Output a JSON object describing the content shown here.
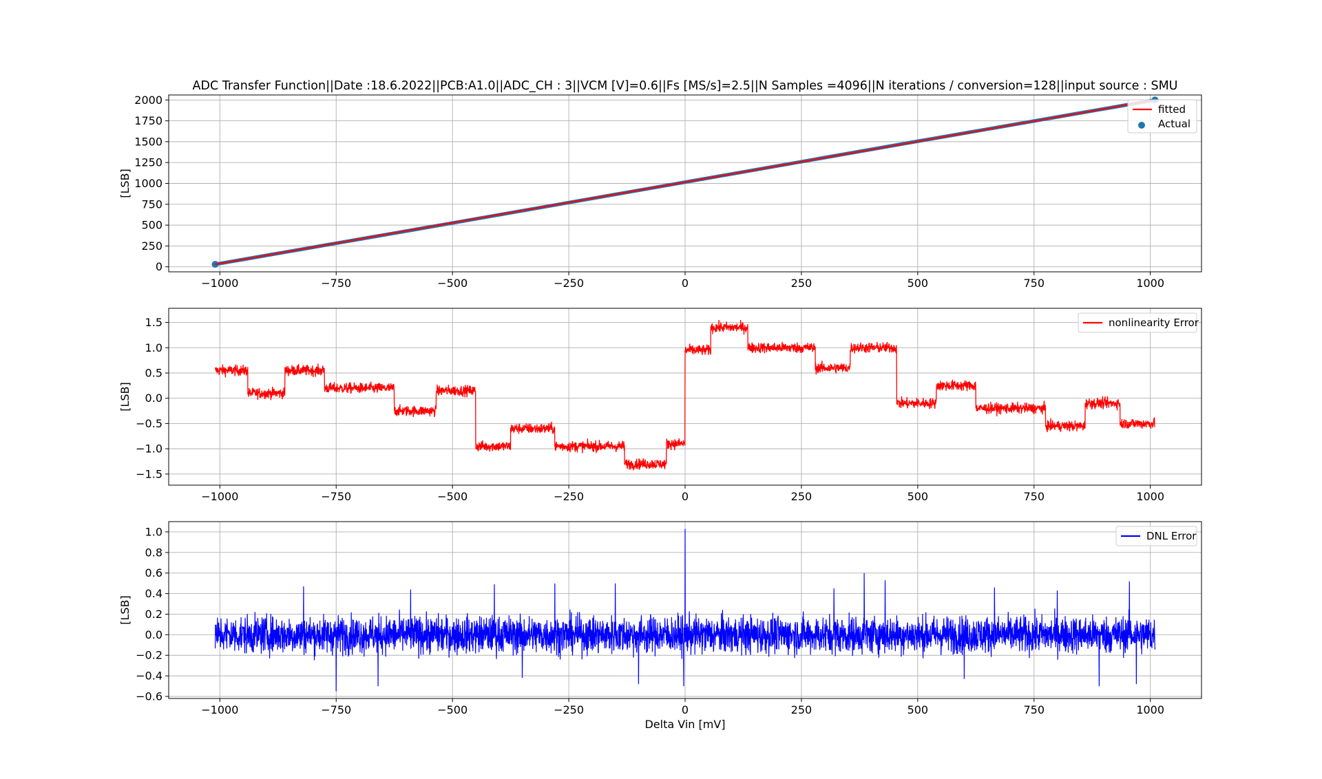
{
  "figure": {
    "title": "ADC Transfer Function||Date :18.6.2022||PCB:A1.0||ADC_CH : 3||VCM [V]=0.6||Fs [MS/s]=2.5||N Samples =4096||N iterations / conversion=128||input source : SMU",
    "xlabel": "Delta Vin [mV]"
  },
  "chart_data": [
    {
      "type": "line",
      "panel": "transfer-function",
      "ylabel": "[LSB]",
      "xlim": [
        -1110,
        1110
      ],
      "ylim": [
        -60,
        2060
      ],
      "x_ticks": [
        -1000,
        -750,
        -500,
        -250,
        0,
        250,
        500,
        750,
        1000
      ],
      "x_tick_labels": [
        "−1000",
        "−750",
        "−500",
        "−250",
        "0",
        "250",
        "500",
        "750",
        "1000"
      ],
      "y_ticks": [
        0,
        250,
        500,
        750,
        1000,
        1250,
        1500,
        1750,
        2000
      ],
      "y_tick_labels": [
        "0",
        "250",
        "500",
        "750",
        "1000",
        "1250",
        "1500",
        "1750",
        "2000"
      ],
      "grid": true,
      "legend": "top-right",
      "series": [
        {
          "name": "fitted",
          "style": "line",
          "color": "#ff0000",
          "x": [
            -1010,
            1010
          ],
          "y": [
            30,
            2000
          ]
        },
        {
          "name": "Actual",
          "style": "scatter",
          "color": "#1f77b4",
          "x": [
            -1010,
            -500,
            0,
            500,
            1010
          ],
          "y": [
            30,
            525,
            1015,
            1505,
            2000
          ]
        }
      ]
    },
    {
      "type": "line",
      "panel": "nonlinearity",
      "ylabel": "[LSB]",
      "xlim": [
        -1110,
        1110
      ],
      "ylim": [
        -1.72,
        1.78
      ],
      "x_ticks": [
        -1000,
        -750,
        -500,
        -250,
        0,
        250,
        500,
        750,
        1000
      ],
      "x_tick_labels": [
        "−1000",
        "−750",
        "−500",
        "−250",
        "0",
        "250",
        "500",
        "750",
        "1000"
      ],
      "y_ticks": [
        -1.5,
        -1.0,
        -0.5,
        0.0,
        0.5,
        1.0,
        1.5
      ],
      "y_tick_labels": [
        "−1.5",
        "−1.0",
        "−0.5",
        "0.0",
        "0.5",
        "1.0",
        "1.5"
      ],
      "grid": true,
      "legend": "top-right",
      "series": [
        {
          "name": "nonlinearity Error",
          "color": "#ff0000",
          "noise_amplitude": 0.07,
          "segments": [
            [
              -1010,
              -940,
              0.55
            ],
            [
              -940,
              -860,
              0.1
            ],
            [
              -860,
              -775,
              0.55
            ],
            [
              -775,
              -625,
              0.2
            ],
            [
              -625,
              -535,
              -0.25
            ],
            [
              -535,
              -450,
              0.15
            ],
            [
              -450,
              -375,
              -0.95
            ],
            [
              -375,
              -280,
              -0.6
            ],
            [
              -280,
              -130,
              -0.95
            ],
            [
              -130,
              -40,
              -1.3
            ],
            [
              -40,
              0,
              -0.9
            ],
            [
              0,
              55,
              0.95
            ],
            [
              55,
              135,
              1.4
            ],
            [
              135,
              280,
              1.0
            ],
            [
              280,
              355,
              0.6
            ],
            [
              355,
              455,
              1.0
            ],
            [
              455,
              540,
              -0.1
            ],
            [
              540,
              625,
              0.25
            ],
            [
              625,
              775,
              -0.2
            ],
            [
              775,
              860,
              -0.55
            ],
            [
              860,
              935,
              -0.1
            ],
            [
              935,
              1010,
              -0.5
            ]
          ]
        }
      ]
    },
    {
      "type": "line",
      "panel": "dnl",
      "ylabel": "[LSB]",
      "xlim": [
        -1110,
        1110
      ],
      "ylim": [
        -0.62,
        1.1
      ],
      "x_ticks": [
        -1000,
        -750,
        -500,
        -250,
        0,
        250,
        500,
        750,
        1000
      ],
      "x_tick_labels": [
        "−1000",
        "−750",
        "−500",
        "−250",
        "0",
        "250",
        "500",
        "750",
        "1000"
      ],
      "y_ticks": [
        -0.6,
        -0.4,
        -0.2,
        0.0,
        0.2,
        0.4,
        0.6,
        0.8,
        1.0
      ],
      "y_tick_labels": [
        "−0.6",
        "−0.4",
        "−0.2",
        "0.0",
        "0.2",
        "0.4",
        "0.6",
        "0.8",
        "1.0"
      ],
      "grid": true,
      "legend": "top-right",
      "series": [
        {
          "name": "DNL Error",
          "color": "#0000ff",
          "noise_amplitude": 0.09,
          "spikes": [
            [
              0,
              1.03
            ],
            [
              -3,
              -0.5
            ],
            [
              -750,
              -0.55
            ],
            [
              -660,
              -0.5
            ],
            [
              -100,
              -0.48
            ],
            [
              385,
              0.6
            ],
            [
              430,
              0.53
            ],
            [
              -820,
              0.47
            ],
            [
              -410,
              0.49
            ],
            [
              -280,
              0.5
            ],
            [
              -150,
              0.5
            ],
            [
              955,
              0.52
            ],
            [
              890,
              -0.5
            ],
            [
              320,
              0.45
            ],
            [
              -590,
              0.44
            ],
            [
              665,
              0.46
            ],
            [
              800,
              0.43
            ],
            [
              -350,
              -0.42
            ],
            [
              600,
              -0.43
            ],
            [
              970,
              -0.48
            ]
          ]
        }
      ]
    }
  ]
}
